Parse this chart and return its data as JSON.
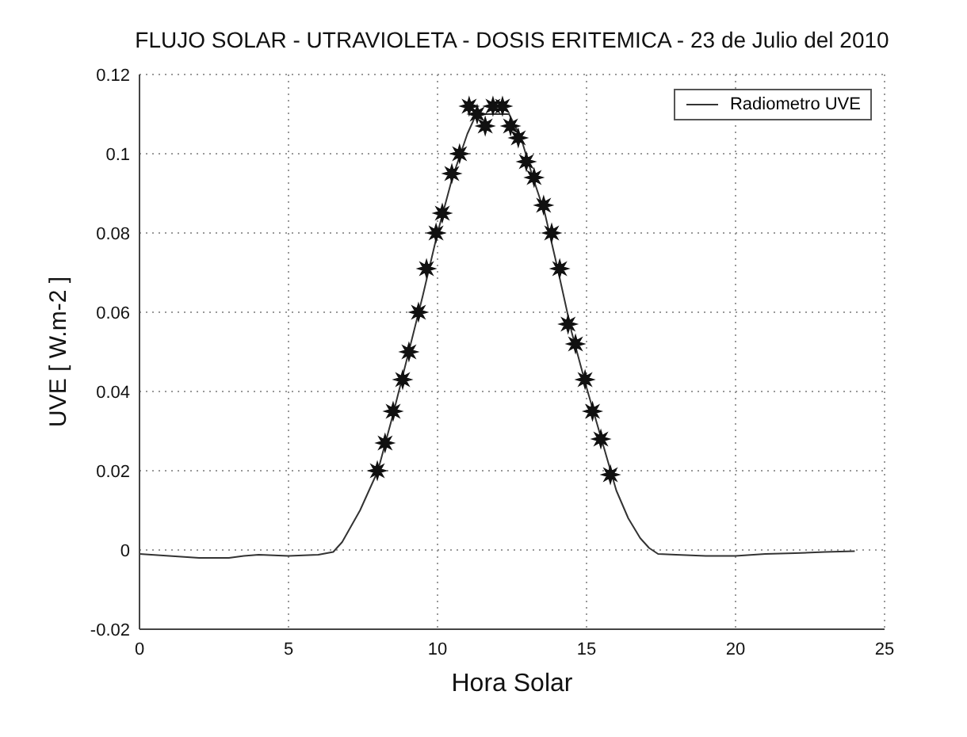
{
  "chart_data": {
    "type": "line",
    "title": "FLUJO SOLAR - UTRAVIOLETA - DOSIS ERITEMICA - 23 de Julio del 2010",
    "xlabel": "Hora Solar",
    "ylabel": "UVE [ W.m-2 ]",
    "xlim": [
      0,
      25
    ],
    "xticks": [
      0,
      5,
      10,
      15,
      20,
      25
    ],
    "ylim": [
      -0.02,
      0.12
    ],
    "yticks": [
      -0.02,
      0,
      0.02,
      0.04,
      0.06,
      0.08,
      0.1,
      0.12
    ],
    "grid": true,
    "legend": "top right",
    "series": [
      {
        "name": "Radiometro UVE",
        "type": "line",
        "color": "#333333",
        "marker": "none",
        "line_style": "solid",
        "x": [
          0,
          1,
          2,
          3,
          3.5,
          4,
          5,
          6,
          6.5,
          6.8,
          7.1,
          7.4,
          7.7,
          8,
          8.5,
          9,
          9.5,
          10,
          10.5,
          11,
          11.3,
          12.4,
          12.8,
          13.2,
          13.6,
          14,
          14.5,
          15,
          15.5,
          16,
          16.4,
          16.8,
          17.1,
          17.4,
          18,
          19,
          20,
          21,
          22,
          23,
          24
        ],
        "values": [
          -0.001,
          -0.0015,
          -0.002,
          -0.002,
          -0.0015,
          -0.0012,
          -0.0015,
          -0.0012,
          -0.0005,
          0.002,
          0.006,
          0.01,
          0.015,
          0.02,
          0.034,
          0.049,
          0.064,
          0.08,
          0.094,
          0.105,
          0.11,
          0.11,
          0.104,
          0.094,
          0.085,
          0.072,
          0.055,
          0.041,
          0.028,
          0.015,
          0.008,
          0.003,
          0.0005,
          -0.001,
          -0.0012,
          -0.0015,
          -0.0015,
          -0.001,
          -0.0008,
          -0.0005,
          -0.0003
        ]
      },
      {
        "type": "scatter",
        "color": "#111111",
        "marker": "star",
        "x": [
          7.98,
          8.24,
          8.51,
          8.83,
          9.04,
          9.36,
          9.63,
          9.95,
          10.16,
          10.48,
          10.74,
          11.06,
          11.33,
          11.6,
          11.86,
          12.18,
          12.45,
          12.71,
          12.98,
          13.24,
          13.56,
          13.83,
          14.1,
          14.38,
          14.63,
          14.95,
          15.2,
          15.48,
          15.8
        ],
        "values": [
          0.02,
          0.027,
          0.035,
          0.043,
          0.05,
          0.06,
          0.071,
          0.08,
          0.085,
          0.095,
          0.1,
          0.112,
          0.11,
          0.107,
          0.112,
          0.112,
          0.107,
          0.104,
          0.098,
          0.094,
          0.087,
          0.08,
          0.071,
          0.057,
          0.052,
          0.043,
          0.035,
          0.028,
          0.019
        ]
      }
    ]
  }
}
